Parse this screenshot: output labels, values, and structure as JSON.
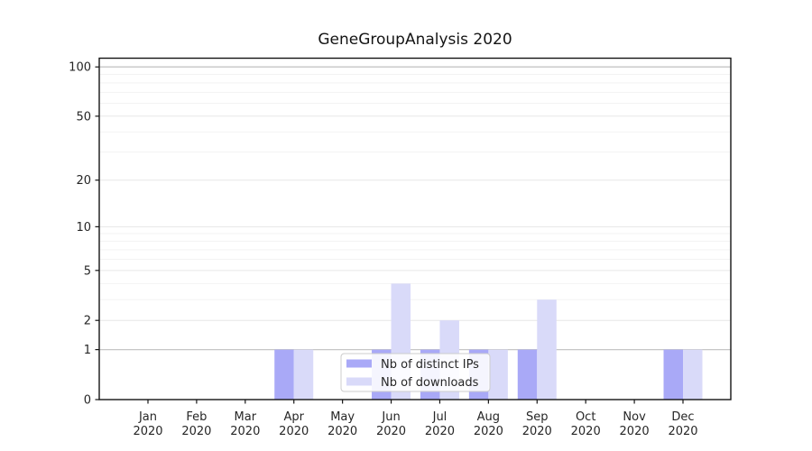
{
  "title": "GeneGroupAnalysis 2020",
  "chart_data": {
    "type": "bar",
    "title": "GeneGroupAnalysis 2020",
    "categories": [
      "Jan",
      "Feb",
      "Mar",
      "Apr",
      "May",
      "Jun",
      "Jul",
      "Aug",
      "Sep",
      "Oct",
      "Nov",
      "Dec"
    ],
    "year_label": "2020",
    "series": [
      {
        "name": "Nb of distinct IPs",
        "color": "#a9a9f7",
        "values": [
          0,
          0,
          0,
          1,
          0,
          1,
          1,
          1,
          1,
          0,
          0,
          1
        ]
      },
      {
        "name": "Nb of downloads",
        "color": "#d9daf9",
        "values": [
          0,
          0,
          0,
          1,
          0,
          4,
          2,
          1,
          3,
          0,
          0,
          1
        ]
      }
    ],
    "yscale": "log1p",
    "ylim": [
      0,
      114
    ],
    "yticks": [
      0,
      1,
      2,
      5,
      10,
      20,
      50,
      100
    ],
    "minor_yticks": [
      3,
      4,
      6,
      7,
      8,
      9,
      30,
      40,
      60,
      70,
      80,
      90
    ],
    "emphasized_gridlines": [
      1,
      100
    ],
    "grid": true,
    "legend_location": "lower center",
    "colors": {
      "axis": "#141414",
      "tick_label": "#262626",
      "grid_major": "#e7e7e7",
      "grid_minor": "#f3f3f3",
      "grid_emphasis": "#c6c6c6",
      "legend_border": "#cccccc"
    }
  }
}
